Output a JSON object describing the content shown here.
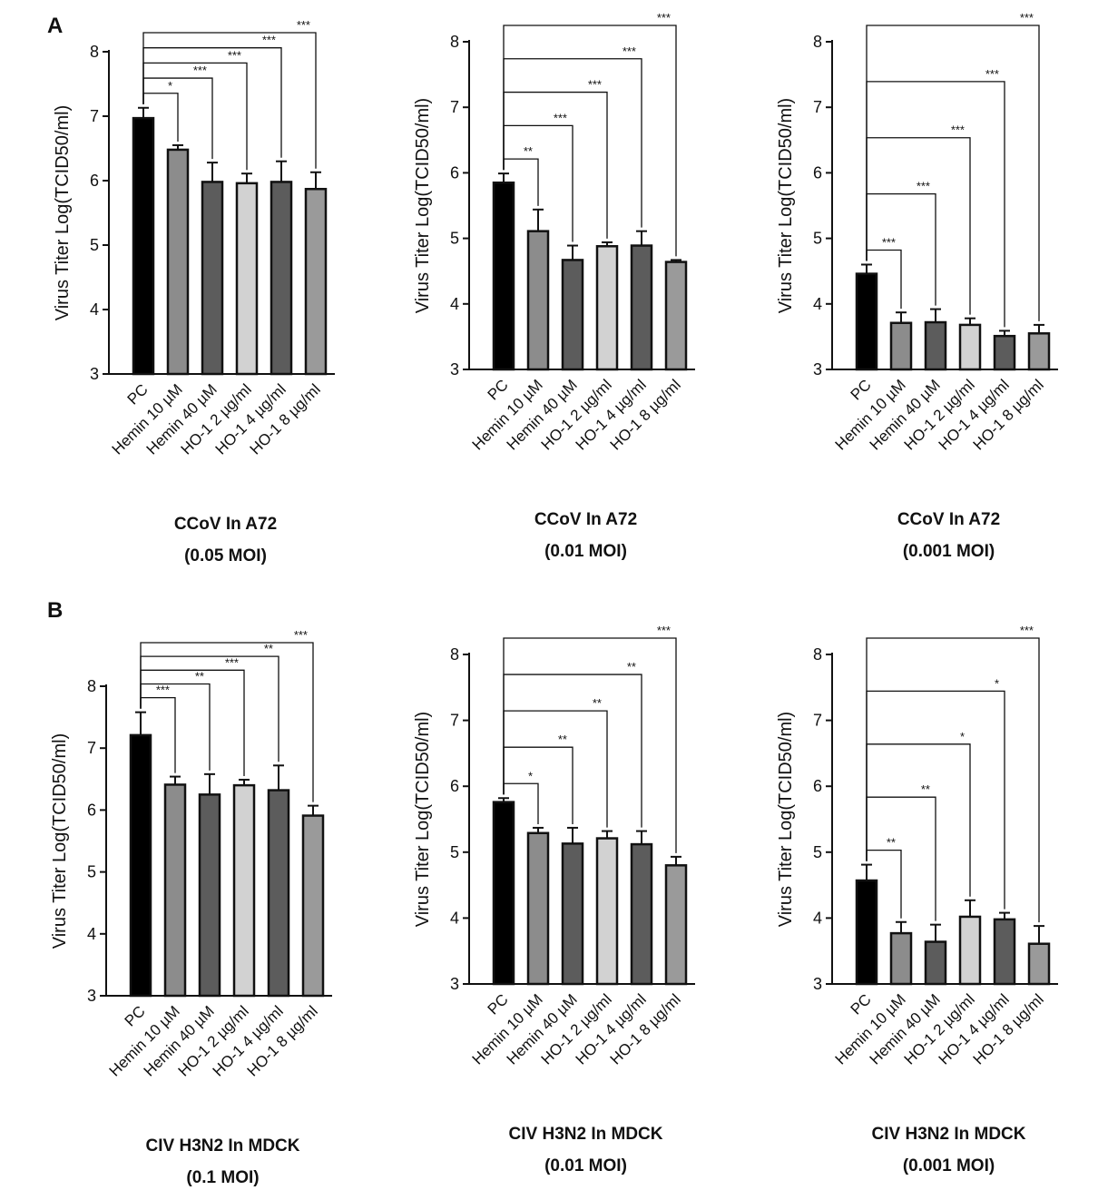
{
  "panel_labels": [
    "A",
    "B"
  ],
  "chart_data": [
    {
      "type": "bar",
      "panel": "A",
      "title": "CCoV In A72",
      "subtitle": "(0.05 MOI)",
      "ylabel": "Virus Titer Log(TCID50/ml)",
      "categories": [
        "PC",
        "Hemin 10 µM",
        "Hemin 40 µM",
        "HO-1 2 µg/ml",
        "HO-1 4 µg/ml",
        "HO-1 8 µg/ml"
      ],
      "values": [
        6.97,
        6.48,
        5.98,
        5.96,
        5.98,
        5.87
      ],
      "errors": [
        0.16,
        0.07,
        0.3,
        0.15,
        0.32,
        0.26
      ],
      "bar_colors": [
        "#000000",
        "#8c8c8c",
        "#5c5c5c",
        "#d2d2d2",
        "#5c5c5c",
        "#9a9a9a"
      ],
      "ylim": [
        3,
        8
      ],
      "yticks": [
        3,
        4,
        5,
        6,
        7,
        8
      ],
      "significance": [
        "*",
        "***",
        "***",
        "***",
        "***"
      ]
    },
    {
      "type": "bar",
      "panel": "",
      "title": "CCoV In A72",
      "subtitle": "(0.01 MOI)",
      "ylabel": "Virus Titer Log(TCID50/ml)",
      "categories": [
        "PC",
        "Hemin 10 µM",
        "Hemin 40 µM",
        "HO-1 2 µg/ml",
        "HO-1 4 µg/ml",
        "HO-1 8 µg/ml"
      ],
      "values": [
        5.85,
        5.11,
        4.67,
        4.88,
        4.89,
        4.64
      ],
      "errors": [
        0.14,
        0.33,
        0.22,
        0.06,
        0.22,
        0.03
      ],
      "bar_colors": [
        "#000000",
        "#8c8c8c",
        "#5c5c5c",
        "#d2d2d2",
        "#5c5c5c",
        "#9a9a9a"
      ],
      "ylim": [
        3,
        8
      ],
      "yticks": [
        3,
        4,
        5,
        6,
        7,
        8
      ],
      "significance": [
        "**",
        "***",
        "***",
        "***",
        "***"
      ]
    },
    {
      "type": "bar",
      "panel": "",
      "title": "CCoV In A72",
      "subtitle": "(0.001 MOI)",
      "ylabel": "Virus Titer Log(TCID50/ml)",
      "categories": [
        "PC",
        "Hemin 10 µM",
        "Hemin 40 µM",
        "HO-1 2 µg/ml",
        "HO-1 4 µg/ml",
        "HO-1 8 µg/ml"
      ],
      "values": [
        4.46,
        3.71,
        3.72,
        3.68,
        3.51,
        3.55
      ],
      "errors": [
        0.14,
        0.16,
        0.2,
        0.1,
        0.08,
        0.13
      ],
      "bar_colors": [
        "#000000",
        "#8c8c8c",
        "#5c5c5c",
        "#d2d2d2",
        "#5c5c5c",
        "#9a9a9a"
      ],
      "ylim": [
        3,
        8
      ],
      "yticks": [
        3,
        4,
        5,
        6,
        7,
        8
      ],
      "significance": [
        "***",
        "***",
        "***",
        "***",
        "***"
      ]
    },
    {
      "type": "bar",
      "panel": "B",
      "title": "CIV H3N2 In MDCK",
      "subtitle": "(0.1 MOI)",
      "ylabel": "Virus Titer Log(TCID50/ml)",
      "categories": [
        "PC",
        "Hemin 10 µM",
        "Hemin 40 µM",
        "HO-1 2 µg/ml",
        "HO-1 4 µg/ml",
        "HO-1 8 µg/ml"
      ],
      "values": [
        7.21,
        6.41,
        6.25,
        6.4,
        6.32,
        5.91
      ],
      "errors": [
        0.37,
        0.13,
        0.33,
        0.09,
        0.4,
        0.16
      ],
      "bar_colors": [
        "#000000",
        "#8c8c8c",
        "#5c5c5c",
        "#d2d2d2",
        "#5c5c5c",
        "#9a9a9a"
      ],
      "ylim": [
        3,
        8
      ],
      "yticks": [
        3,
        4,
        5,
        6,
        7,
        8
      ],
      "significance": [
        "***",
        "**",
        "***",
        "**",
        "***"
      ]
    },
    {
      "type": "bar",
      "panel": "",
      "title": "CIV H3N2 In MDCK",
      "subtitle": "(0.01 MOI)",
      "ylabel": "Virus Titer Log(TCID50/ml)",
      "categories": [
        "PC",
        "Hemin 10 µM",
        "Hemin 40 µM",
        "HO-1 2 µg/ml",
        "HO-1 4 µg/ml",
        "HO-1 8 µg/ml"
      ],
      "values": [
        5.76,
        5.29,
        5.13,
        5.21,
        5.12,
        4.8
      ],
      "errors": [
        0.06,
        0.08,
        0.24,
        0.11,
        0.2,
        0.13
      ],
      "bar_colors": [
        "#000000",
        "#8c8c8c",
        "#5c5c5c",
        "#d2d2d2",
        "#5c5c5c",
        "#9a9a9a"
      ],
      "ylim": [
        3,
        8
      ],
      "yticks": [
        3,
        4,
        5,
        6,
        7,
        8
      ],
      "significance": [
        "*",
        "**",
        "**",
        "**",
        "***"
      ]
    },
    {
      "type": "bar",
      "panel": "",
      "title": "CIV H3N2 In MDCK",
      "subtitle": "(0.001 MOI)",
      "ylabel": "Virus Titer Log(TCID50/ml)",
      "categories": [
        "PC",
        "Hemin 10 µM",
        "Hemin 40 µM",
        "HO-1 2 µg/ml",
        "HO-1 4 µg/ml",
        "HO-1 8 µg/ml"
      ],
      "values": [
        4.57,
        3.77,
        3.64,
        4.02,
        3.98,
        3.61
      ],
      "errors": [
        0.24,
        0.17,
        0.26,
        0.25,
        0.1,
        0.27
      ],
      "bar_colors": [
        "#000000",
        "#8c8c8c",
        "#5c5c5c",
        "#d2d2d2",
        "#5c5c5c",
        "#9a9a9a"
      ],
      "ylim": [
        3,
        8
      ],
      "yticks": [
        3,
        4,
        5,
        6,
        7,
        8
      ],
      "significance": [
        "**",
        "**",
        "*",
        "*",
        "***"
      ]
    }
  ]
}
